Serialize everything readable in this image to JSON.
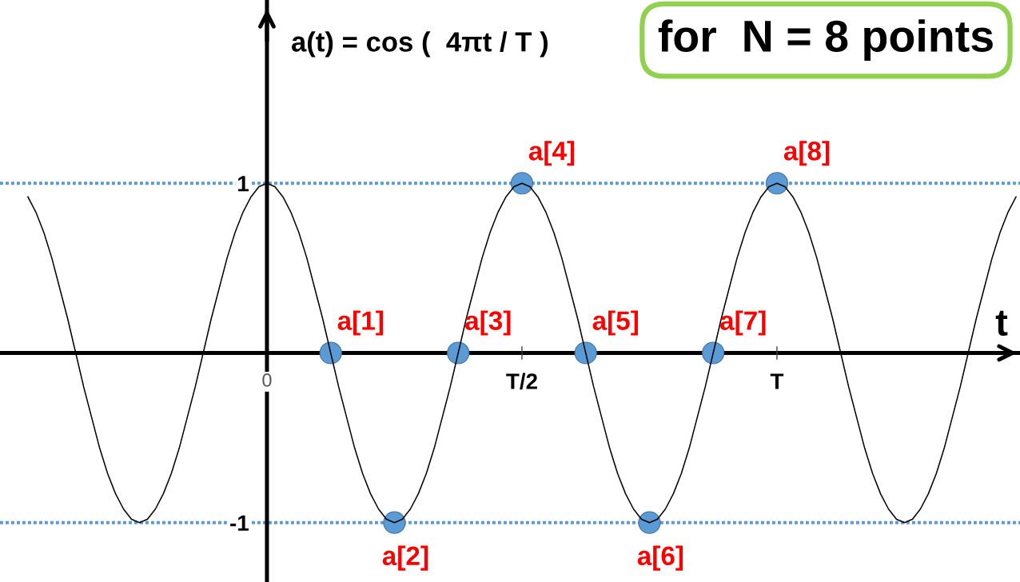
{
  "chart_data": {
    "type": "line",
    "title": "for  N = 8 points",
    "ylabel": "a(t) = cos (  4πt / T )",
    "xlabel": "t",
    "categories": [
      null,
      null,
      null,
      null,
      null,
      null,
      null,
      null,
      null,
      null,
      null,
      null,
      null,
      null,
      null,
      null,
      null,
      null,
      null,
      null,
      null,
      null,
      null,
      null,
      null,
      null,
      null,
      null,
      null,
      null,
      null,
      null,
      null,
      "0",
      null,
      null,
      null,
      null,
      null,
      null,
      null,
      null,
      null,
      null,
      null,
      null,
      null,
      null,
      null,
      null,
      null,
      null,
      null,
      null,
      null,
      null,
      null,
      null,
      null,
      null,
      null,
      null,
      null,
      null,
      null,
      "T/2",
      null,
      null,
      null,
      null,
      null,
      null,
      null,
      null,
      null,
      null,
      null,
      null,
      null,
      null,
      null,
      null,
      null,
      null,
      null,
      null,
      null,
      null,
      null,
      null,
      null,
      null,
      null,
      null,
      null,
      null,
      null,
      "T",
      null,
      null,
      null,
      null,
      null,
      null,
      null,
      null,
      null,
      null,
      null,
      null,
      null,
      null,
      null,
      null,
      null,
      null,
      null,
      null,
      null,
      null,
      null,
      null,
      null,
      null,
      null,
      null,
      null,
      null
    ],
    "series": [
      {
        "color": "#000000",
        "values": [
          null,
          null,
          null,
          0.92,
          0.83,
          0.71,
          0.56,
          0.38,
          0.2,
          0,
          -0.2,
          -0.38,
          -0.56,
          -0.71,
          -0.83,
          -0.92,
          -0.98,
          -1,
          -0.98,
          -0.92,
          -0.83,
          -0.71,
          -0.56,
          -0.38,
          -0.2,
          0,
          0.2,
          0.38,
          0.56,
          0.71,
          0.83,
          0.92,
          0.98,
          1,
          0.98,
          0.92,
          0.83,
          0.71,
          0.56,
          0.38,
          0.2,
          0,
          -0.2,
          -0.38,
          -0.56,
          -0.71,
          -0.83,
          -0.92,
          -0.98,
          -1,
          -0.98,
          -0.92,
          -0.83,
          -0.71,
          -0.56,
          -0.38,
          -0.2,
          0,
          0.2,
          0.38,
          0.56,
          0.71,
          0.83,
          0.92,
          0.98,
          1,
          0.98,
          0.92,
          0.83,
          0.71,
          0.56,
          0.38,
          0.2,
          0,
          -0.2,
          -0.38,
          -0.56,
          -0.71,
          -0.83,
          -0.92,
          -0.98,
          -1,
          -0.98,
          -0.92,
          -0.83,
          -0.71,
          -0.56,
          -0.38,
          -0.2,
          0,
          0.2,
          0.38,
          0.56,
          0.71,
          0.83,
          0.92,
          0.98,
          1,
          0.98,
          0.92,
          0.83,
          0.71,
          0.56,
          0.38,
          0.2,
          0,
          -0.2,
          -0.38,
          -0.56,
          -0.71,
          -0.83,
          -0.92,
          -0.98,
          -1,
          -0.98,
          -0.92,
          -0.83,
          -0.71,
          -0.56,
          -0.38,
          -0.2,
          0,
          0.2,
          0.38,
          0.56,
          0.71,
          0.83,
          0.92
        ]
      },
      {
        "type": "scatter",
        "color": "#5b9bd5",
        "marker": "circle",
        "values": [
          null,
          null,
          null,
          null,
          null,
          null,
          null,
          null,
          null,
          null,
          null,
          null,
          null,
          null,
          null,
          null,
          null,
          null,
          null,
          null,
          null,
          null,
          null,
          null,
          null,
          null,
          null,
          null,
          null,
          null,
          null,
          null,
          null,
          null,
          null,
          null,
          null,
          null,
          null,
          null,
          null,
          0,
          null,
          null,
          null,
          null,
          null,
          null,
          null,
          -1,
          null,
          null,
          null,
          null,
          null,
          null,
          null,
          0,
          null,
          null,
          null,
          null,
          null,
          null,
          null,
          1,
          null,
          null,
          null,
          null,
          null,
          null,
          null,
          0,
          null,
          null,
          null,
          null,
          null,
          null,
          null,
          -1,
          null,
          null,
          null,
          null,
          null,
          null,
          null,
          0,
          null,
          null,
          null,
          null,
          null,
          null,
          null,
          1,
          null,
          null,
          null,
          null,
          null,
          null,
          null,
          null,
          null,
          null,
          null,
          null,
          null,
          null,
          null,
          null,
          null,
          null,
          null,
          null,
          null,
          null,
          null,
          null,
          null,
          null,
          null,
          null,
          null,
          null
        ]
      }
    ],
    "ylim": [
      -1.35,
      2.08
    ],
    "yticks": [
      -1,
      1
    ],
    "ref_lines": [
      {
        "axis": "y",
        "value": 1,
        "color": "#5b9bd5",
        "line_style": "dotted"
      },
      {
        "axis": "y",
        "value": -1,
        "color": "#5b9bd5",
        "line_style": "dotted"
      }
    ],
    "annotations": [
      "a[1]",
      "a[2]",
      "a[3]",
      {
        "text": "a[4]",
        "x": "T/2",
        "y": 1
      },
      "a[5]",
      "a[6]",
      "a[7]",
      {
        "text": "a[8]",
        "x": "T",
        "y": 1
      }
    ]
  }
}
